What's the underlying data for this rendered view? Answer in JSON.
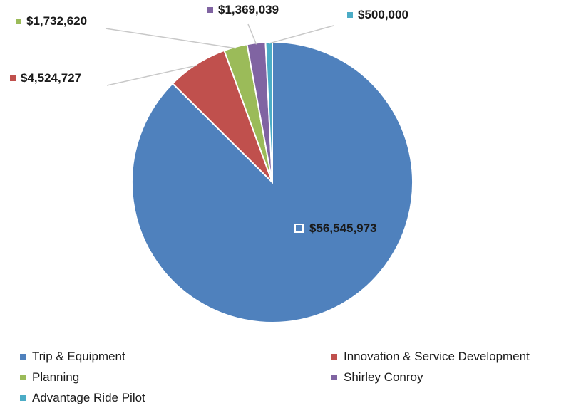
{
  "chart_data": {
    "type": "pie",
    "title": "",
    "start_angle": "12 o'clock",
    "direction": "clockwise",
    "slices": [
      {
        "name": "Trip &  Equipment",
        "value": 56545973,
        "label": "$56,545,973",
        "color": "#4F81BD"
      },
      {
        "name": "Innovation & Service Development",
        "value": 4524727,
        "label": "$4,524,727",
        "color": "#C0504D"
      },
      {
        "name": "Planning",
        "value": 1732620,
        "label": "$1,732,620",
        "color": "#9BBB59"
      },
      {
        "name": "Shirley Conroy",
        "value": 1369039,
        "label": "$1,369,039",
        "color": "#8064A2"
      },
      {
        "name": "Advantage Ride Pilot",
        "value": 500000,
        "label": "$500,000",
        "color": "#4BACC6"
      }
    ],
    "legend_position": "bottom"
  },
  "legend": {
    "items": [
      {
        "label": "Trip &  Equipment",
        "color": "#4F81BD"
      },
      {
        "label": "Innovation & Service Development",
        "color": "#C0504D"
      },
      {
        "label": "Planning",
        "color": "#9BBB59"
      },
      {
        "label": "Shirley Conroy",
        "color": "#8064A2"
      },
      {
        "label": "Advantage Ride Pilot",
        "color": "#4BACC6"
      }
    ]
  }
}
